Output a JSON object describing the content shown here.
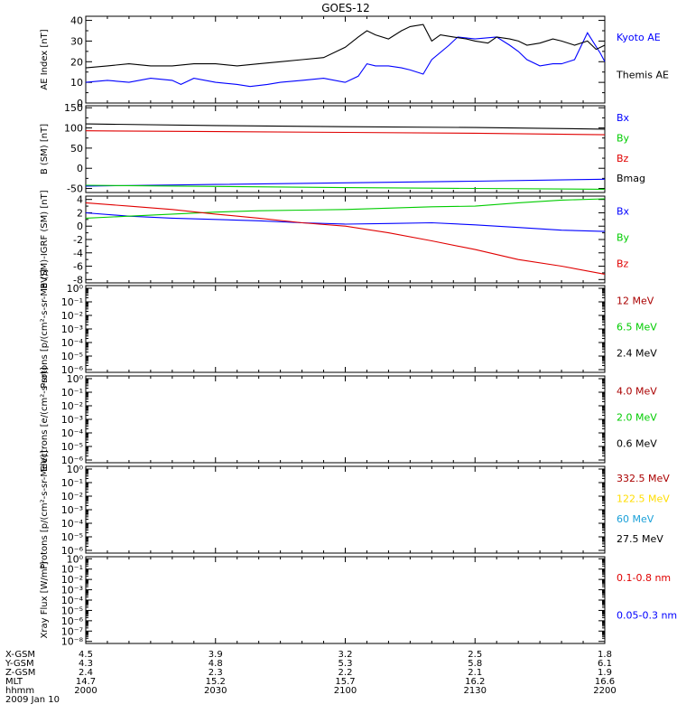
{
  "title": "GOES-12",
  "time_axis": {
    "rows": [
      {
        "label": "X-GSM",
        "values": [
          "4.5",
          "3.9",
          "3.2",
          "2.5",
          "1.8"
        ]
      },
      {
        "label": "Y-GSM",
        "values": [
          "4.3",
          "4.8",
          "5.3",
          "5.8",
          "6.1"
        ]
      },
      {
        "label": "Z-GSM",
        "values": [
          "2.4",
          "2.3",
          "2.2",
          "2.1",
          "1.9"
        ]
      },
      {
        "label": "MLT",
        "values": [
          "14.7",
          "15.2",
          "15.7",
          "16.2",
          "16.6"
        ]
      },
      {
        "label": "hhmm",
        "values": [
          "2000",
          "2030",
          "2100",
          "2130",
          "2200"
        ]
      }
    ],
    "date": "2009 Jan 10"
  },
  "colors": {
    "black": "#000000",
    "blue": "#0000ff",
    "green": "#00cc00",
    "red": "#e00000",
    "darkred": "#aa0000",
    "yellow": "#ffdd00",
    "cyan": "#1aa0d8"
  },
  "chart_data": [
    {
      "type": "line",
      "ylabel": "AE Index [nT]",
      "ylim": [
        0,
        42
      ],
      "ticks": [
        "0",
        "10",
        "20",
        "30",
        "40"
      ],
      "tick_values": [
        0,
        10,
        20,
        30,
        40
      ],
      "log": false,
      "legend": [
        {
          "text": "Kyoto AE",
          "color": "blue"
        },
        {
          "text": "Themis AE",
          "color": "black"
        }
      ],
      "series": [
        {
          "name": "Kyoto AE",
          "color": "blue",
          "x": [
            0,
            5,
            10,
            15,
            20,
            22,
            25,
            30,
            35,
            38,
            42,
            45,
            50,
            55,
            60,
            63,
            65,
            67,
            70,
            73,
            75,
            78,
            80,
            84,
            86,
            90,
            95,
            98,
            100,
            102,
            105,
            108,
            110,
            113,
            116,
            119,
            120
          ],
          "y": [
            10,
            11,
            10,
            12,
            11,
            9,
            12,
            10,
            9,
            8,
            9,
            10,
            11,
            12,
            10,
            13,
            19,
            18,
            18,
            17,
            16,
            14,
            21,
            28,
            32,
            31,
            32,
            28,
            25,
            21,
            18,
            19,
            19,
            21,
            34,
            24,
            20
          ]
        },
        {
          "name": "Themis AE",
          "color": "black",
          "x": [
            0,
            5,
            10,
            15,
            20,
            25,
            30,
            35,
            40,
            45,
            50,
            55,
            60,
            63,
            65,
            67,
            70,
            73,
            75,
            78,
            80,
            82,
            85,
            88,
            90,
            93,
            95,
            98,
            100,
            102,
            105,
            108,
            110,
            113,
            116,
            118,
            120
          ],
          "y": [
            17,
            18,
            19,
            18,
            18,
            19,
            19,
            18,
            19,
            20,
            21,
            22,
            27,
            32,
            35,
            33,
            31,
            35,
            37,
            38,
            30,
            33,
            32,
            31,
            30,
            29,
            32,
            31,
            30,
            28,
            29,
            31,
            30,
            28,
            30,
            26,
            28
          ]
        }
      ]
    },
    {
      "type": "line",
      "ylabel": "B (SM) [nT]",
      "ylim": [
        -60,
        155
      ],
      "ticks": [
        "-50",
        "0",
        "50",
        "100",
        "150"
      ],
      "tick_values": [
        -50,
        0,
        50,
        100,
        150
      ],
      "log": false,
      "legend": [
        {
          "text": "Bx",
          "color": "blue"
        },
        {
          "text": "By",
          "color": "green"
        },
        {
          "text": "Bz",
          "color": "red"
        },
        {
          "text": "Bmag",
          "color": "black"
        }
      ],
      "series": [
        {
          "name": "Bmag",
          "color": "black",
          "x": [
            0,
            30,
            60,
            90,
            120
          ],
          "y": [
            110,
            106,
            103,
            101,
            97
          ]
        },
        {
          "name": "Bz",
          "color": "red",
          "x": [
            0,
            30,
            60,
            90,
            120
          ],
          "y": [
            93,
            91,
            89,
            87,
            83
          ]
        },
        {
          "name": "Bx",
          "color": "blue",
          "x": [
            0,
            30,
            60,
            90,
            120
          ],
          "y": [
            -44,
            -40,
            -36,
            -32,
            -27
          ]
        },
        {
          "name": "By",
          "color": "green",
          "x": [
            0,
            30,
            60,
            90,
            120
          ],
          "y": [
            -42,
            -45,
            -48,
            -50,
            -52
          ]
        }
      ]
    },
    {
      "type": "line",
      "ylabel": "B (SM)-IGRF (SM) [nT]",
      "ylim": [
        -8.5,
        4.5
      ],
      "ticks": [
        "-8",
        "-6",
        "-4",
        "-2",
        "0",
        "2",
        "4"
      ],
      "tick_values": [
        -8,
        -6,
        -4,
        -2,
        0,
        2,
        4
      ],
      "log": false,
      "legend": [
        {
          "text": "Bx",
          "color": "blue"
        },
        {
          "text": "By",
          "color": "green"
        },
        {
          "text": "Bz",
          "color": "red"
        }
      ],
      "series": [
        {
          "name": "Bx",
          "color": "blue",
          "x": [
            0,
            10,
            20,
            30,
            40,
            50,
            60,
            70,
            80,
            90,
            100,
            110,
            120
          ],
          "y": [
            2.0,
            1.5,
            1.2,
            1.0,
            0.8,
            0.5,
            0.3,
            0.4,
            0.5,
            0.2,
            -0.2,
            -0.6,
            -0.8
          ]
        },
        {
          "name": "By",
          "color": "green",
          "x": [
            0,
            10,
            20,
            30,
            40,
            50,
            60,
            70,
            80,
            90,
            100,
            110,
            120
          ],
          "y": [
            1.2,
            1.5,
            1.8,
            2.1,
            2.3,
            2.4,
            2.5,
            2.7,
            2.9,
            3.0,
            3.5,
            3.9,
            4.1
          ]
        },
        {
          "name": "Bz",
          "color": "red",
          "x": [
            0,
            10,
            20,
            30,
            40,
            50,
            60,
            70,
            80,
            90,
            100,
            110,
            120
          ],
          "y": [
            3.5,
            3.0,
            2.5,
            1.8,
            1.2,
            0.5,
            0.0,
            -1.0,
            -2.2,
            -3.5,
            -5.0,
            -6.0,
            -7.2
          ]
        }
      ]
    },
    {
      "type": "line",
      "ylabel": "Protons [p/(cm²-s-sr-MeV)]",
      "log": true,
      "ylim": [
        -6.2,
        0.2
      ],
      "ticks": [
        "10⁰",
        "10⁻¹",
        "10⁻²",
        "10⁻³",
        "10⁻⁴",
        "10⁻⁵",
        "10⁻⁶"
      ],
      "tick_values": [
        0,
        -1,
        -2,
        -3,
        -4,
        -5,
        -6
      ],
      "legend": [
        {
          "text": "12 MeV",
          "color": "darkred"
        },
        {
          "text": "6.5 MeV",
          "color": "green"
        },
        {
          "text": "2.4 MeV",
          "color": "black"
        }
      ],
      "series": []
    },
    {
      "type": "line",
      "ylabel": "Electrons [e/(cm²-s-sr)]",
      "log": true,
      "ylim": [
        -6.2,
        0.2
      ],
      "ticks": [
        "10⁰",
        "10⁻¹",
        "10⁻²",
        "10⁻³",
        "10⁻⁴",
        "10⁻⁵",
        "10⁻⁶"
      ],
      "tick_values": [
        0,
        -1,
        -2,
        -3,
        -4,
        -5,
        -6
      ],
      "legend": [
        {
          "text": "4.0 MeV",
          "color": "darkred"
        },
        {
          "text": "2.0 MeV",
          "color": "green"
        },
        {
          "text": "0.6 MeV",
          "color": "black"
        }
      ],
      "series": []
    },
    {
      "type": "line",
      "ylabel": "Protons [p/(cm²-s-sr-MeV)]",
      "log": true,
      "ylim": [
        -6.2,
        0.2
      ],
      "ticks": [
        "10⁰",
        "10⁻¹",
        "10⁻²",
        "10⁻³",
        "10⁻⁴",
        "10⁻⁵",
        "10⁻⁶"
      ],
      "tick_values": [
        0,
        -1,
        -2,
        -3,
        -4,
        -5,
        -6
      ],
      "legend": [
        {
          "text": "332.5 MeV",
          "color": "darkred"
        },
        {
          "text": "122.5 MeV",
          "color": "yellow"
        },
        {
          "text": "60 MeV",
          "color": "cyan"
        },
        {
          "text": "27.5 MeV",
          "color": "black"
        }
      ],
      "series": []
    },
    {
      "type": "line",
      "ylabel": "Xray Flux [W/m²]",
      "log": true,
      "ylim": [
        -8.2,
        0.2
      ],
      "ticks": [
        "10⁰",
        "10⁻¹",
        "10⁻²",
        "10⁻³",
        "10⁻⁴",
        "10⁻⁵",
        "10⁻⁶",
        "10⁻⁷",
        "10⁻⁸"
      ],
      "tick_values": [
        0,
        -1,
        -2,
        -3,
        -4,
        -5,
        -6,
        -7,
        -8
      ],
      "legend": [
        {
          "text": "0.1-0.8 nm",
          "color": "red"
        },
        {
          "text": "0.05-0.3 nm",
          "color": "blue"
        }
      ],
      "series": []
    }
  ]
}
